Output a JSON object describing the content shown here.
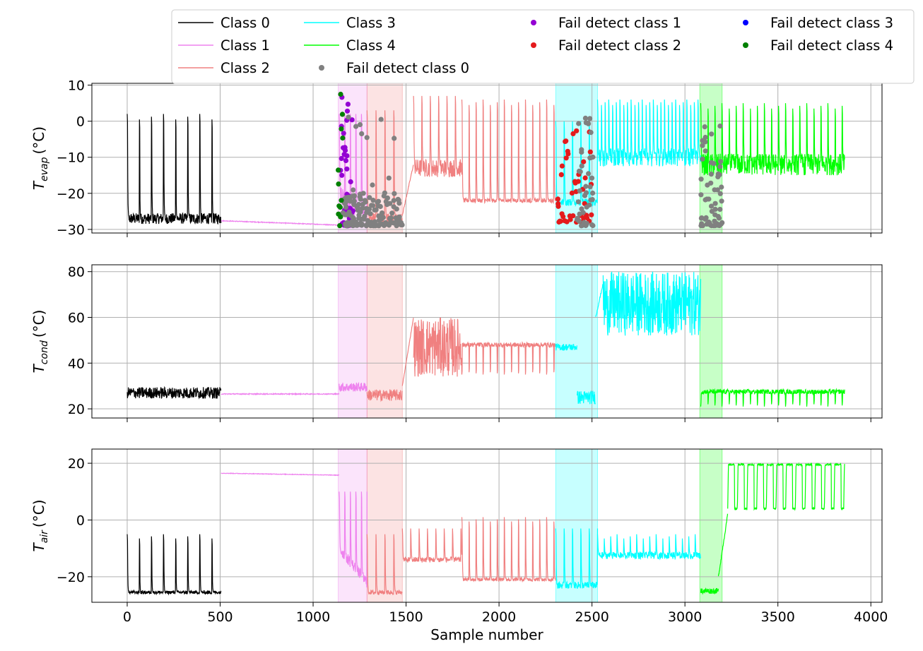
{
  "chart_data": {
    "type": "line",
    "xlabel": "Sample number",
    "xlim": [
      -190,
      4060
    ],
    "xticks": [
      0,
      500,
      1000,
      1500,
      2000,
      2500,
      3000,
      3500,
      4000
    ],
    "grid": true,
    "colors": {
      "class0": "#000000",
      "class1": "#ee82ee",
      "class2": "#f08080",
      "class3": "#00ffff",
      "class4": "#00ff00",
      "fail0": "#808080",
      "fail1": "#9400d3",
      "fail2": "#e41a1c",
      "fail3": "#0000ff",
      "fail4": "#008000"
    },
    "legend": {
      "placement": "top",
      "entries": [
        {
          "label": "Class 0",
          "kind": "line",
          "color_key": "class0"
        },
        {
          "label": "Class 1",
          "kind": "line",
          "color_key": "class1"
        },
        {
          "label": "Class 2",
          "kind": "line",
          "color_key": "class2"
        },
        {
          "label": "Class 3",
          "kind": "line",
          "color_key": "class3"
        },
        {
          "label": "Class 4",
          "kind": "line",
          "color_key": "class4"
        },
        {
          "label": "Fail detect  class 0",
          "kind": "dot",
          "color_key": "fail0"
        },
        {
          "label": "Fail detect  class 1",
          "kind": "dot",
          "color_key": "fail1"
        },
        {
          "label": "Fail detect  class 2",
          "kind": "dot",
          "color_key": "fail2"
        },
        {
          "label": "Fail detect  class 3",
          "kind": "dot",
          "color_key": "fail3"
        },
        {
          "label": "Fail detect  class 4",
          "kind": "dot",
          "color_key": "fail4"
        }
      ]
    },
    "shaded_regions": [
      {
        "x": [
          1135,
          1290
        ],
        "color_key": "class1"
      },
      {
        "x": [
          1290,
          1480
        ],
        "color_key": "class2"
      },
      {
        "x": [
          2305,
          2530
        ],
        "color_key": "class3"
      },
      {
        "x": [
          3080,
          3200
        ],
        "color_key": "class4"
      }
    ],
    "segments": [
      {
        "class": 0,
        "x": [
          0,
          505
        ]
      },
      {
        "class": 1,
        "x": [
          505,
          1290
        ]
      },
      {
        "class": 2,
        "x": [
          1290,
          2305
        ]
      },
      {
        "class": 3,
        "x": [
          2305,
          3085
        ]
      },
      {
        "class": 4,
        "x": [
          3085,
          3860
        ]
      }
    ],
    "panels": [
      {
        "ylabel": "T_evap (°C)",
        "ylabel_main": "T",
        "ylabel_sub": "evap",
        "ylabel_unit": "(°C)",
        "ylim": [
          -31,
          10.5
        ],
        "yticks": [
          10,
          0,
          -10,
          -20,
          -30
        ],
        "series": [
          {
            "class": 0,
            "x": [
              0,
              505
            ],
            "base": -27.0,
            "pattern": "spikes",
            "spike_every": 65,
            "spike_to": 2.0,
            "noise": 1.5
          },
          {
            "class": 1,
            "x": [
              505,
              1140
            ],
            "base": -27.6,
            "end": -28.8,
            "pattern": "drift",
            "noise": 0.2
          },
          {
            "class": 1,
            "x": [
              1140,
              1290
            ],
            "base": -20.0,
            "end": -26.5,
            "pattern": "spikes",
            "spike_every": 30,
            "spike_to": 2.0,
            "noise": 2.5
          },
          {
            "class": 2,
            "x": [
              1290,
              1480
            ],
            "base": -27.0,
            "pattern": "spikes",
            "spike_every": 48,
            "spike_to": 3.0,
            "noise": 1.5
          },
          {
            "class": 2,
            "x": [
              1480,
              1540
            ],
            "base": -26.0,
            "end": -12.0,
            "pattern": "drift",
            "noise": 0.5
          },
          {
            "class": 2,
            "x": [
              1540,
              1800
            ],
            "base": -13.0,
            "pattern": "spikes",
            "spike_every": 45,
            "spike_to": 7.0,
            "noise": 2.5
          },
          {
            "class": 2,
            "x": [
              1800,
              2305
            ],
            "base": -22.0,
            "pattern": "spikes",
            "spike_every": 38,
            "spike_to": 6.0,
            "noise": 0.6
          },
          {
            "class": 3,
            "x": [
              2305,
              2530
            ],
            "base": -22.5,
            "pattern": "spikes",
            "spike_every": 45,
            "spike_to": 0.0,
            "noise": 1.0
          },
          {
            "class": 3,
            "x": [
              2530,
              3085
            ],
            "base": -10.0,
            "pattern": "spikes",
            "spike_every": 20,
            "spike_to": 6.0,
            "noise": 2.5
          },
          {
            "class": 4,
            "x": [
              3085,
              3860
            ],
            "base": -12.0,
            "pattern": "spikes",
            "spike_every": 38,
            "spike_to": 5.0,
            "noise": 3.0
          }
        ],
        "fail_points": [
          {
            "class": 1,
            "x": [
              1140,
              1220
            ],
            "y": [
              -29,
              7
            ],
            "count": 40
          },
          {
            "class": 0,
            "x": [
              1160,
              1480
            ],
            "y": [
              -29,
              -20
            ],
            "count": 140
          },
          {
            "class": 0,
            "x": [
              1150,
              1480
            ],
            "y": [
              -20,
              4
            ],
            "count": 12
          },
          {
            "class": 4,
            "x": [
              1135,
              1160
            ],
            "y": [
              -29,
              8
            ],
            "count": 12
          },
          {
            "class": 2,
            "x": [
              2300,
              2505
            ],
            "y": [
              -28,
              -1
            ],
            "count": 45
          },
          {
            "class": 0,
            "x": [
              2420,
              2505
            ],
            "y": [
              -29,
              1
            ],
            "count": 45
          },
          {
            "class": 0,
            "x": [
              3080,
              3200
            ],
            "y": [
              -29,
              -1
            ],
            "count": 60
          }
        ]
      },
      {
        "ylabel": "T_cond (°C)",
        "ylabel_main": "T",
        "ylabel_sub": "cond",
        "ylabel_unit": "(°C)",
        "ylim": [
          16,
          83
        ],
        "yticks": [
          80,
          60,
          40,
          20
        ],
        "series": [
          {
            "class": 0,
            "x": [
              0,
              505
            ],
            "base": 27.0,
            "pattern": "noise",
            "noise": 2.5
          },
          {
            "class": 1,
            "x": [
              505,
              1140
            ],
            "base": 26.5,
            "end": 26.5,
            "pattern": "drift",
            "noise": 0.4
          },
          {
            "class": 1,
            "x": [
              1140,
              1290
            ],
            "base": 29.5,
            "pattern": "noise",
            "noise": 2.0
          },
          {
            "class": 2,
            "x": [
              1290,
              1480
            ],
            "base": 26.0,
            "pattern": "noise",
            "noise": 2.5
          },
          {
            "class": 2,
            "x": [
              1480,
              1540
            ],
            "base": 30.0,
            "end": 60.0,
            "pattern": "drift",
            "noise": 0.5
          },
          {
            "class": 2,
            "x": [
              1540,
              1800
            ],
            "base": 47.0,
            "pattern": "dense",
            "noise": 13.0
          },
          {
            "class": 2,
            "x": [
              1800,
              2305
            ],
            "base": 48.0,
            "pattern": "dips",
            "dip_every": 38,
            "dip_to": 35.0,
            "noise": 1.0
          },
          {
            "class": 3,
            "x": [
              2305,
              2420
            ],
            "base": 47.0,
            "pattern": "noise",
            "noise": 1.5
          },
          {
            "class": 3,
            "x": [
              2420,
              2520
            ],
            "base": 25.0,
            "pattern": "noise",
            "noise": 3.0
          },
          {
            "class": 3,
            "x": [
              2520,
              2560
            ],
            "base": 60.0,
            "end": 75.0,
            "pattern": "drift",
            "noise": 1.0
          },
          {
            "class": 3,
            "x": [
              2560,
              3085
            ],
            "base": 66.0,
            "pattern": "dense",
            "noise": 14.0
          },
          {
            "class": 4,
            "x": [
              3085,
              3860
            ],
            "base": 27.5,
            "pattern": "dips",
            "dip_every": 38,
            "dip_to": 21.0,
            "noise": 1.0
          }
        ],
        "fail_points": []
      },
      {
        "ylabel": "T_air (°C)",
        "ylabel_main": "T",
        "ylabel_sub": "air",
        "ylabel_unit": "(°C)",
        "ylim": [
          -29,
          25
        ],
        "yticks": [
          20,
          0,
          -20
        ],
        "series": [
          {
            "class": 0,
            "x": [
              0,
              505
            ],
            "base": -25.5,
            "pattern": "spikes",
            "spike_every": 65,
            "spike_to": -5.0,
            "noise": 0.6
          },
          {
            "class": 1,
            "x": [
              505,
              1140
            ],
            "base": 16.5,
            "end": 15.8,
            "pattern": "drift",
            "noise": 0.2
          },
          {
            "class": 1,
            "x": [
              1140,
              1290
            ],
            "base": -10.0,
            "end": -22.0,
            "pattern": "spikes",
            "spike_every": 30,
            "spike_to": 10.0,
            "noise": 2.0
          },
          {
            "class": 2,
            "x": [
              1290,
              1480
            ],
            "base": -25.5,
            "pattern": "spikes",
            "spike_every": 48,
            "spike_to": -5.0,
            "noise": 0.8
          },
          {
            "class": 2,
            "x": [
              1480,
              1800
            ],
            "base": -14.0,
            "pattern": "spikes",
            "spike_every": 45,
            "spike_to": -3.0,
            "noise": 1.0
          },
          {
            "class": 2,
            "x": [
              1800,
              2305
            ],
            "base": -21.0,
            "pattern": "spikes",
            "spike_every": 38,
            "spike_to": 1.0,
            "noise": 0.6
          },
          {
            "class": 3,
            "x": [
              2305,
              2530
            ],
            "base": -23.0,
            "pattern": "spikes",
            "spike_every": 45,
            "spike_to": -3.0,
            "noise": 1.2
          },
          {
            "class": 3,
            "x": [
              2530,
              3085
            ],
            "base": -12.5,
            "pattern": "spikes",
            "spike_every": 35,
            "spike_to": -5.0,
            "noise": 1.2
          },
          {
            "class": 4,
            "x": [
              3085,
              3180
            ],
            "base": -25.0,
            "pattern": "noise",
            "noise": 1.0
          },
          {
            "class": 4,
            "x": [
              3180,
              3230
            ],
            "base": -20.0,
            "end": 2.0,
            "pattern": "drift",
            "noise": 1.0
          },
          {
            "class": 4,
            "x": [
              3230,
              3860
            ],
            "base": 4.0,
            "pattern": "pulses",
            "pulse_every": 52,
            "pulse_to": 21.0,
            "noise": 0.6
          }
        ],
        "fail_points": []
      }
    ]
  }
}
